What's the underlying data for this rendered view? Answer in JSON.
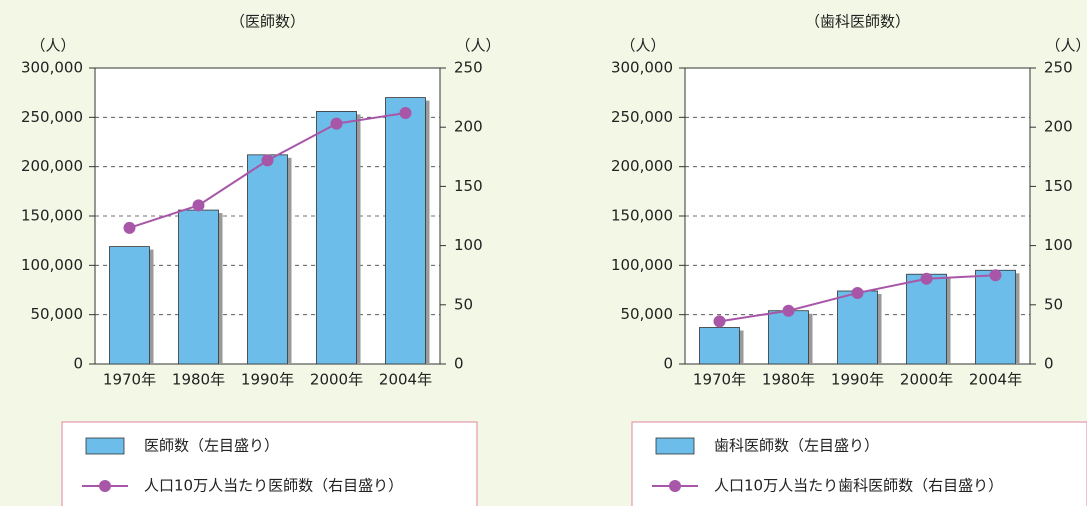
{
  "chart_data": [
    {
      "type": "bar_line",
      "title": "（医師数）",
      "y_label": "（人）",
      "y2_label": "（人）",
      "categories": [
        "1970年",
        "1980年",
        "1990年",
        "2000年",
        "2004年"
      ],
      "series": [
        {
          "name": "医師数（左目盛り）",
          "type": "bar",
          "color": "#6cbde9",
          "values": [
            119000,
            156000,
            212000,
            256000,
            270000
          ]
        },
        {
          "name": "人口10万人当たり医師数（右目盛り）",
          "type": "line",
          "color": "#a857a8",
          "axis": "y2",
          "values": [
            115,
            134,
            172,
            203,
            212
          ]
        }
      ],
      "ylim": [
        0,
        300000
      ],
      "yticks": [
        0,
        {
          "value": 50000,
          "label": "50,000"
        },
        {
          "value": 100000,
          "label": "100,000"
        },
        {
          "value": 150000,
          "label": "150,000"
        },
        {
          "value": 200000,
          "label": "200,000"
        },
        {
          "value": 250000,
          "label": "250,000"
        },
        {
          "value": 300000,
          "label": "300,000"
        }
      ],
      "y2lim": [
        0,
        250
      ],
      "y2ticks": [
        0,
        50,
        100,
        150,
        200,
        250
      ],
      "grid": true
    },
    {
      "type": "bar_line",
      "title": "（歯科医師数）",
      "y_label": "（人）",
      "y2_label": "（人）",
      "categories": [
        "1970年",
        "1980年",
        "1990年",
        "2000年",
        "2004年"
      ],
      "series": [
        {
          "name": "歯科医師数（左目盛り）",
          "type": "bar",
          "color": "#6cbde9",
          "values": [
            37000,
            54000,
            74000,
            91000,
            95000
          ]
        },
        {
          "name": "人口10万人当たり歯科医師数（右目盛り）",
          "type": "line",
          "color": "#a857a8",
          "axis": "y2",
          "values": [
            36,
            45,
            60,
            72,
            75
          ]
        }
      ],
      "ylim": [
        0,
        300000
      ],
      "yticks": [
        0,
        {
          "value": 50000,
          "label": "50,000"
        },
        {
          "value": 100000,
          "label": "100,000"
        },
        {
          "value": 150000,
          "label": "150,000"
        },
        {
          "value": 200000,
          "label": "200,000"
        },
        {
          "value": 250000,
          "label": "250,000"
        },
        {
          "value": 300000,
          "label": "300,000"
        }
      ],
      "y2lim": [
        0,
        250
      ],
      "y2ticks": [
        0,
        50,
        100,
        150,
        200,
        250
      ],
      "grid": true
    }
  ]
}
